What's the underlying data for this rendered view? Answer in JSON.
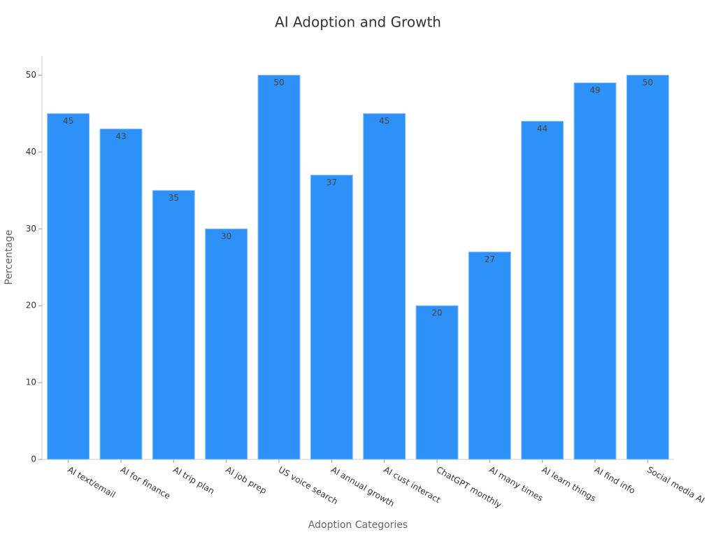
{
  "chart_data": {
    "type": "bar",
    "title": "AI Adoption and Growth",
    "x_label": "Adoption Categories",
    "y_label": "Percentage",
    "categories": [
      "AI text/email",
      "AI for finance",
      "AI trip plan",
      "AI job prep",
      "US voice search",
      "AI annual growth",
      "AI cust interact",
      "ChatGPT monthly",
      "AI many times",
      "AI learn things",
      "AI find info",
      "Social media AI"
    ],
    "values": [
      45,
      43,
      35,
      30,
      50,
      37,
      45,
      20,
      27,
      44,
      49,
      50
    ],
    "color": "#2e91f7",
    "ylim": [
      0,
      52.5
    ],
    "yticks": [
      0,
      10,
      20,
      30,
      40,
      50
    ],
    "grid": false
  }
}
